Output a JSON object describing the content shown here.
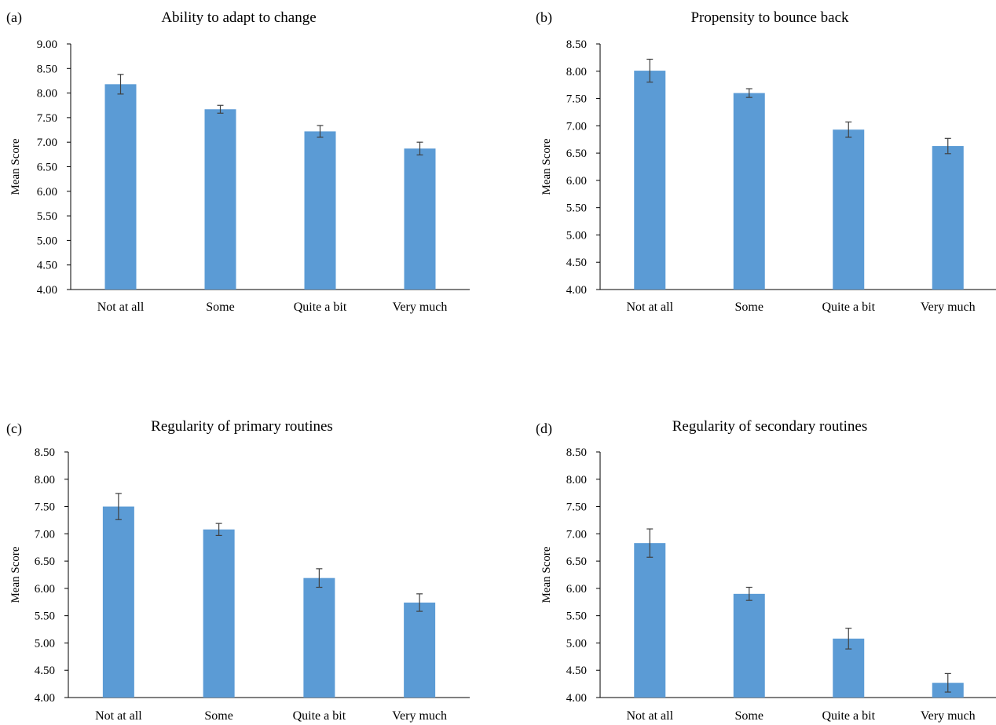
{
  "figure": {
    "bar_color": "#5b9bd5",
    "error_bar_color": "#404040",
    "axis_color": "#000000"
  },
  "chart_data": [
    {
      "panel_label": "(a)",
      "type": "bar",
      "title": "Ability to adapt to change",
      "xlabel": "",
      "ylabel": "Mean Score",
      "categories": [
        "Not at all",
        "Some",
        "Quite a bit",
        "Very much"
      ],
      "values": [
        8.18,
        7.67,
        7.22,
        6.87
      ],
      "errors": [
        0.2,
        0.08,
        0.12,
        0.13
      ],
      "ylim": [
        4.0,
        9.0
      ],
      "yticks": [
        "4.00",
        "4.50",
        "5.00",
        "5.50",
        "6.00",
        "6.50",
        "7.00",
        "7.50",
        "8.00",
        "8.50",
        "9.00"
      ],
      "grid": false,
      "legend": "none"
    },
    {
      "panel_label": "(b)",
      "type": "bar",
      "title": "Propensity to bounce back",
      "xlabel": "",
      "ylabel": "Mean Score",
      "categories": [
        "Not at all",
        "Some",
        "Quite a bit",
        "Very much"
      ],
      "values": [
        8.01,
        7.6,
        6.93,
        6.63
      ],
      "errors": [
        0.21,
        0.08,
        0.14,
        0.14
      ],
      "ylim": [
        4.0,
        8.5
      ],
      "yticks": [
        "4.00",
        "4.50",
        "5.00",
        "5.50",
        "6.00",
        "6.50",
        "7.00",
        "7.50",
        "8.00",
        "8.50"
      ],
      "grid": false,
      "legend": "none"
    },
    {
      "panel_label": "(c)",
      "type": "bar",
      "title": "Regularity of primary routines",
      "xlabel": "",
      "ylabel": "Mean Score",
      "categories": [
        "Not at all",
        "Some",
        "Quite a bit",
        "Very much"
      ],
      "values": [
        7.5,
        7.08,
        6.19,
        5.74
      ],
      "errors": [
        0.24,
        0.11,
        0.17,
        0.16
      ],
      "ylim": [
        4.0,
        8.5
      ],
      "yticks": [
        "4.00",
        "4.50",
        "5.00",
        "5.50",
        "6.00",
        "6.50",
        "7.00",
        "7.50",
        "8.00",
        "8.50"
      ],
      "grid": false,
      "legend": "none"
    },
    {
      "panel_label": "(d)",
      "type": "bar",
      "title": "Regularity of secondary routines",
      "xlabel": "",
      "ylabel": "Mean Score",
      "categories": [
        "Not at all",
        "Some",
        "Quite a bit",
        "Very much"
      ],
      "values": [
        6.83,
        5.9,
        5.08,
        4.27
      ],
      "errors": [
        0.26,
        0.12,
        0.19,
        0.17
      ],
      "ylim": [
        4.0,
        8.5
      ],
      "yticks": [
        "4.00",
        "4.50",
        "5.00",
        "5.50",
        "6.00",
        "6.50",
        "7.00",
        "7.50",
        "8.00",
        "8.50"
      ],
      "grid": false,
      "legend": "none"
    }
  ]
}
